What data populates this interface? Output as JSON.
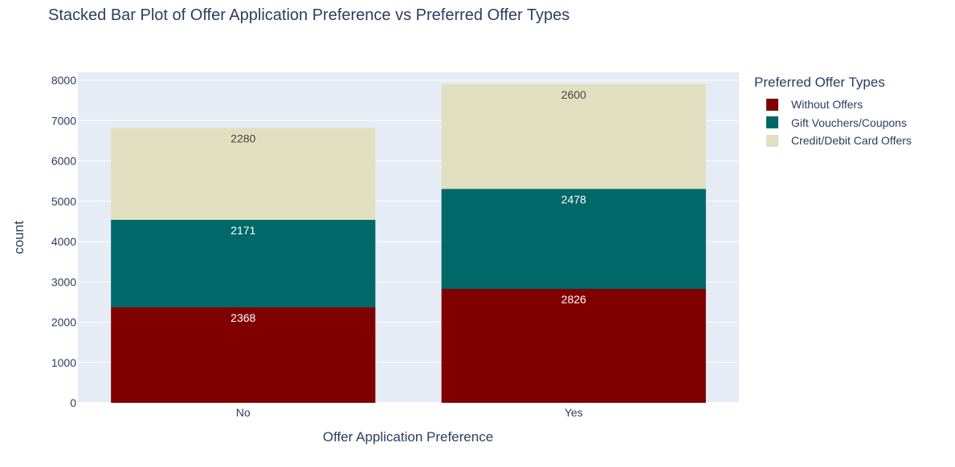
{
  "chart_data": {
    "type": "bar",
    "stacked": true,
    "title": "Stacked Bar Plot of Offer Application Preference vs Preferred Offer Types",
    "xlabel": "Offer Application Preference",
    "ylabel": "count",
    "categories": [
      "No",
      "Yes"
    ],
    "ylim": [
      0,
      8200
    ],
    "yticks": [
      0,
      1000,
      2000,
      3000,
      4000,
      5000,
      6000,
      7000,
      8000
    ],
    "grid": true,
    "legend_title": "Preferred Offer Types",
    "legend_position": "right",
    "series": [
      {
        "name": "Without Offers",
        "values": [
          2368,
          2826
        ],
        "color": "#800000",
        "label_color": "#ffffff"
      },
      {
        "name": "Gift Vouchers/Coupons",
        "values": [
          2171,
          2478
        ],
        "color": "#006868",
        "label_color": "#ffffff"
      },
      {
        "name": "Credit/Debit Card Offers",
        "values": [
          2280,
          2600
        ],
        "color": "#e0e0c0",
        "label_color": "#444444"
      }
    ],
    "plot_background": "#e5ecf6"
  }
}
